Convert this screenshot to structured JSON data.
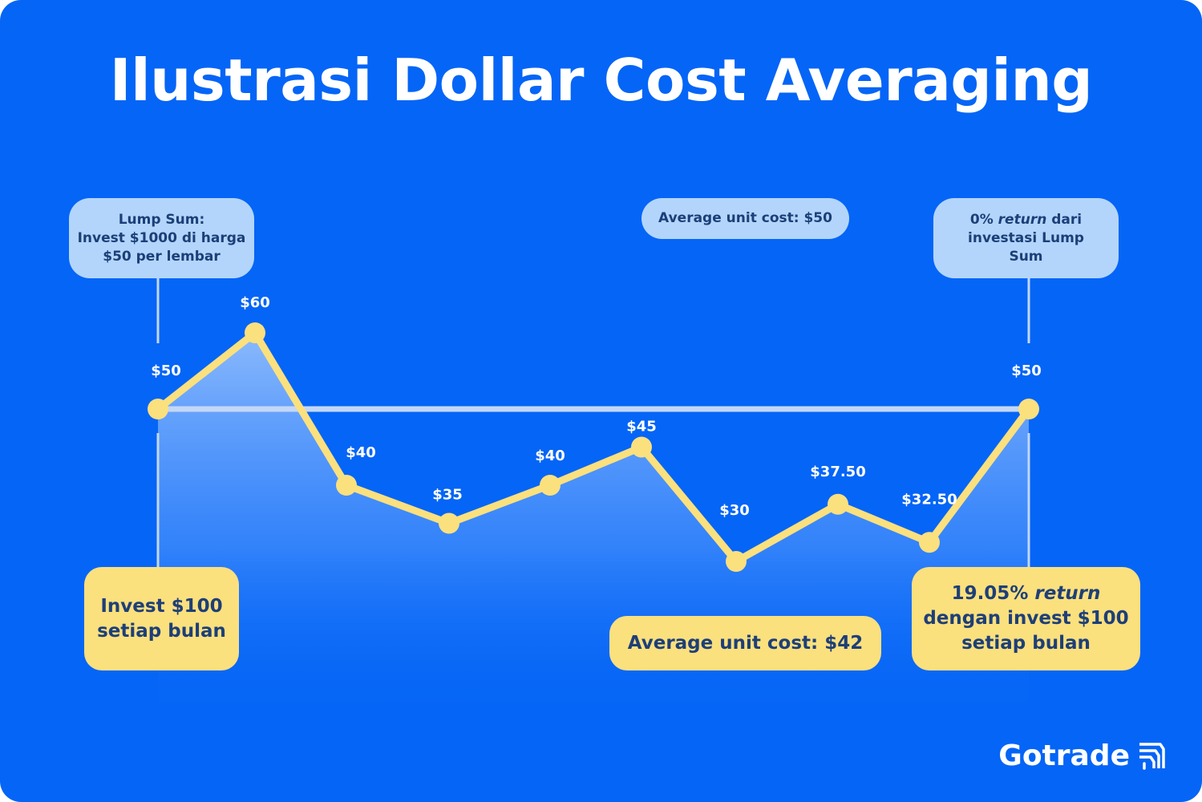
{
  "title": "Ilustrasi Dollar Cost Averaging",
  "callouts": {
    "lump_sum": [
      "Lump Sum:",
      "Invest $1000 di harga",
      "$50 per lembar"
    ],
    "avg_cost_lump": "Average unit cost: $50",
    "lump_return": {
      "pre": "0% ",
      "em": "return",
      "post": " dari",
      "line2": "investasi Lump",
      "line3": "Sum"
    },
    "dca": [
      "Invest $100",
      "setiap bulan"
    ],
    "avg_cost_dca": "Average unit cost: $42",
    "dca_return": {
      "pre": "19.05% ",
      "em": "return",
      "line2": "dengan invest $100",
      "line3": "setiap bulan"
    }
  },
  "brand": "Gotrade",
  "brand_icon": "gotrade-logo-icon",
  "colors": {
    "background": "#0565f6",
    "line": "#fbe07e",
    "reference_line": "#c3d7f5",
    "light_bubble": "#b3d5fb",
    "yellow_bubble": "#fbe07e",
    "dark_text": "#1b3f78"
  },
  "chart_data": {
    "type": "line",
    "x": [
      1,
      2,
      3,
      4,
      5,
      6,
      7,
      8,
      9,
      10
    ],
    "values": [
      50,
      60,
      40,
      35,
      40,
      45,
      30,
      37.5,
      32.5,
      50
    ],
    "labels": [
      "$50",
      "$60",
      "$40",
      "$35",
      "$40",
      "$45",
      "$30",
      "$37.50",
      "$32.50",
      "$50"
    ],
    "reference_line": 50,
    "grid": false
  }
}
